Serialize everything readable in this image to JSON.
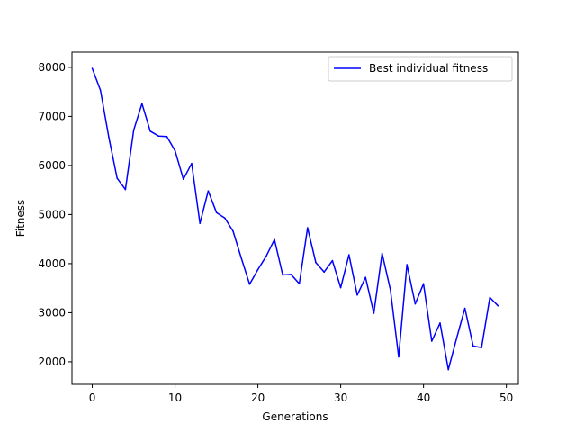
{
  "chart_data": {
    "type": "line",
    "title": "",
    "xlabel": "Generations",
    "ylabel": "Fitness",
    "xlim": [
      -2.45,
      51.45
    ],
    "ylim": [
      1540,
      8310
    ],
    "xticks": [
      0,
      10,
      20,
      30,
      40,
      50
    ],
    "yticks": [
      2000,
      3000,
      4000,
      5000,
      6000,
      7000,
      8000
    ],
    "grid": false,
    "legend_position": "top-right",
    "x": [
      0,
      1,
      2,
      3,
      4,
      5,
      6,
      7,
      8,
      9,
      10,
      11,
      12,
      13,
      14,
      15,
      16,
      17,
      18,
      19,
      20,
      21,
      22,
      23,
      24,
      25,
      26,
      27,
      28,
      29,
      30,
      31,
      32,
      33,
      34,
      35,
      36,
      37,
      38,
      39,
      40,
      41,
      42,
      43,
      44,
      45,
      46,
      47,
      48,
      49
    ],
    "series": [
      {
        "name": "Best individual fitness",
        "color": "#0000ff",
        "values": [
          7980,
          7530,
          6580,
          5740,
          5510,
          6720,
          7260,
          6700,
          6600,
          6590,
          6300,
          5720,
          6040,
          4820,
          5480,
          5040,
          4930,
          4660,
          4110,
          3580,
          3880,
          4150,
          4490,
          3770,
          3780,
          3590,
          4730,
          4020,
          3830,
          4060,
          3510,
          4180,
          3360,
          3720,
          2990,
          4210,
          3470,
          2100,
          3980,
          3180,
          3590,
          2420,
          2790,
          1840,
          2480,
          3090,
          2320,
          2290,
          3310,
          3140
        ]
      }
    ]
  }
}
